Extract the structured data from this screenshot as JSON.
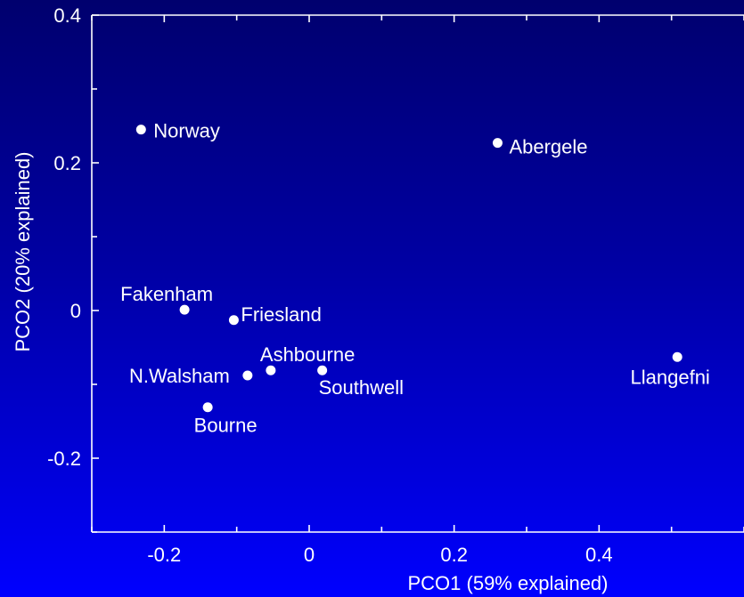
{
  "chart_data": {
    "type": "scatter",
    "title": "",
    "xlabel": "PCO1 (59% explained)",
    "ylabel": "PCO2 (20% explained)",
    "xlim": [
      -0.3,
      0.6
    ],
    "ylim": [
      -0.3,
      0.4
    ],
    "xticks": [
      -0.2,
      0,
      0.2,
      0.4
    ],
    "xtick_labels": [
      "-0.2",
      "0",
      "0.2",
      "0.4"
    ],
    "yticks": [
      -0.2,
      0,
      0.2,
      0.4
    ],
    "ytick_labels": [
      "-0.2",
      "0",
      "0.2",
      "0.4"
    ],
    "grid": false,
    "point_color": "#ffffff",
    "background_color": "#0000c8",
    "points": [
      {
        "label": "Norway",
        "x": -0.232,
        "y": 0.245
      },
      {
        "label": "Abergele",
        "x": 0.26,
        "y": 0.227
      },
      {
        "label": "Fakenham",
        "x": -0.172,
        "y": 0.001
      },
      {
        "label": "Friesland",
        "x": -0.104,
        "y": -0.013
      },
      {
        "label": "Ashbourne",
        "x": -0.053,
        "y": -0.081
      },
      {
        "label": "N.Walsham",
        "x": -0.085,
        "y": -0.088
      },
      {
        "label": "Southwell",
        "x": 0.018,
        "y": -0.081
      },
      {
        "label": "Bourne",
        "x": -0.14,
        "y": -0.131
      },
      {
        "label": "Llangefni",
        "x": 0.508,
        "y": -0.063
      }
    ]
  }
}
